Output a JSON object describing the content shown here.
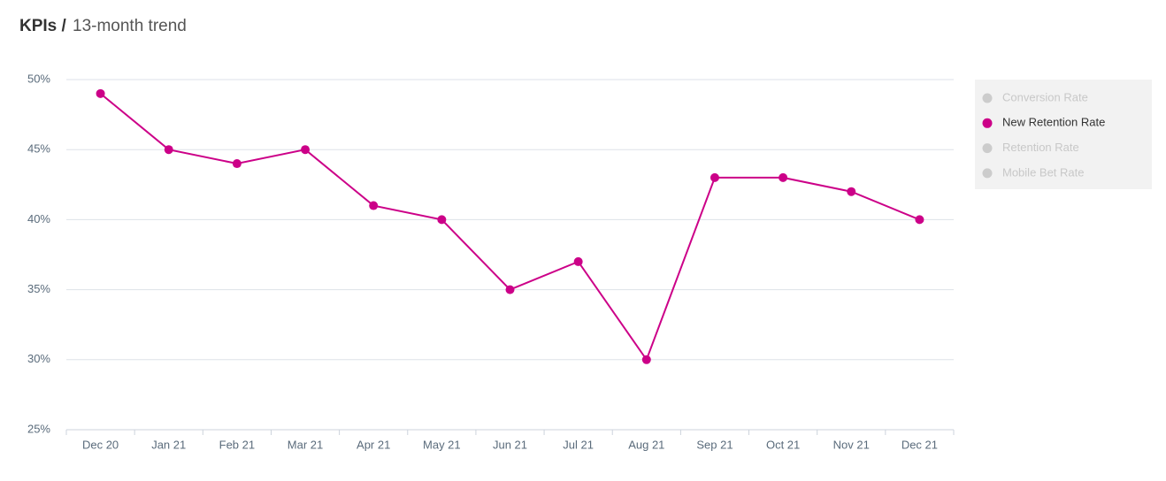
{
  "chart_data": {
    "type": "line",
    "title": "KPIs /",
    "subtitle": "13-month trend",
    "categories": [
      "Dec 20",
      "Jan 21",
      "Feb 21",
      "Mar 21",
      "Apr 21",
      "May 21",
      "Jun 21",
      "Jul 21",
      "Aug 21",
      "Sep 21",
      "Oct 21",
      "Nov 21",
      "Dec 21"
    ],
    "series": [
      {
        "name": "Conversion Rate",
        "visible": false,
        "color": "#cccccc"
      },
      {
        "name": "New Retention Rate",
        "visible": true,
        "color": "#cc0088",
        "values": [
          49,
          45,
          44,
          45,
          41,
          40,
          35,
          37,
          30,
          43,
          43,
          42,
          40
        ]
      },
      {
        "name": "Retention Rate",
        "visible": false,
        "color": "#cccccc"
      },
      {
        "name": "Mobile Bet Rate",
        "visible": false,
        "color": "#cccccc"
      }
    ],
    "ylim": [
      25,
      50
    ],
    "yticks": [
      {
        "value": 25,
        "label": "25%"
      },
      {
        "value": 30,
        "label": "30%"
      },
      {
        "value": 35,
        "label": "35%"
      },
      {
        "value": 40,
        "label": "40%"
      },
      {
        "value": 45,
        "label": "45%"
      },
      {
        "value": 50,
        "label": "50%"
      }
    ],
    "grid": true
  }
}
